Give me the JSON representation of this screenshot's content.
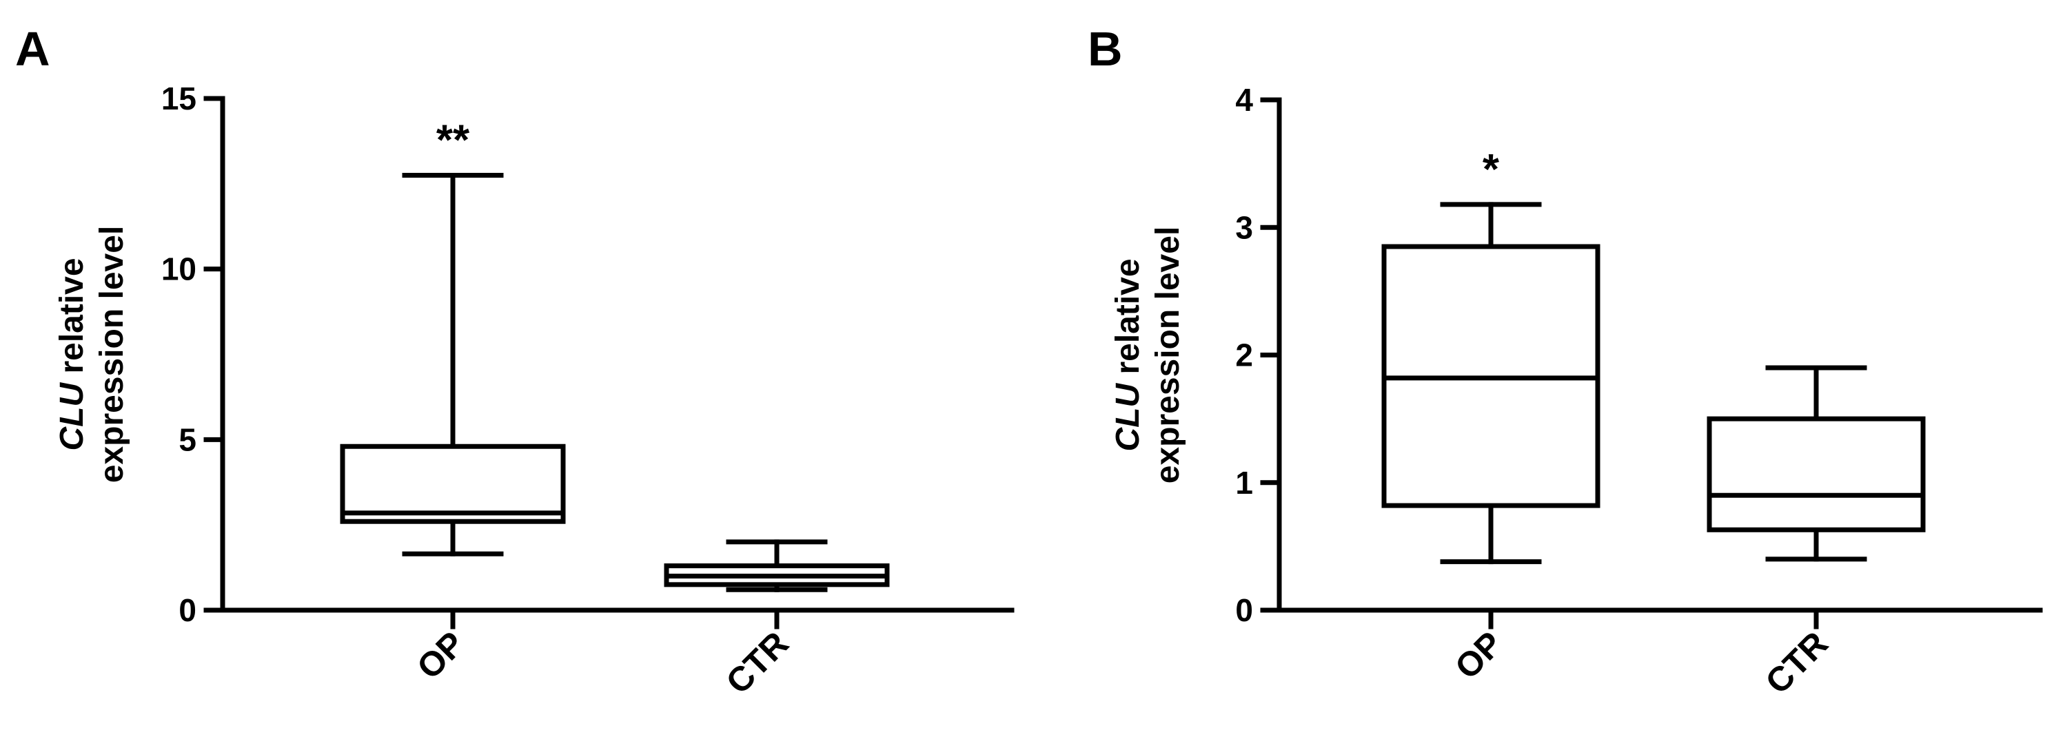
{
  "chart_data": [
    {
      "type": "box",
      "panel_label": "A",
      "ylabel_italic": "CLU",
      "ylabel_rest": " relative",
      "ylabel_line2": "expression level",
      "ylim": [
        0,
        15
      ],
      "yticks": [
        0,
        5,
        10,
        15
      ],
      "yticklabels": [
        "0",
        "5",
        "10",
        "15"
      ],
      "categories": [
        "OP",
        "CTR"
      ],
      "boxes": [
        {
          "category": "OP",
          "whisker_low": 1.65,
          "q1": 2.6,
          "median": 2.85,
          "q3": 4.8,
          "whisker_high": 12.75,
          "significance": "**"
        },
        {
          "category": "CTR",
          "whisker_low": 0.6,
          "q1": 0.75,
          "median": 1.0,
          "q3": 1.3,
          "whisker_high": 2.0,
          "significance": ""
        }
      ]
    },
    {
      "type": "box",
      "panel_label": "B",
      "ylabel_italic": "CLU",
      "ylabel_rest": " relative",
      "ylabel_line2": "expression level",
      "ylim": [
        0,
        4
      ],
      "yticks": [
        0,
        1,
        2,
        3,
        4
      ],
      "yticklabels": [
        "0",
        "1",
        "2",
        "3",
        "4"
      ],
      "categories": [
        "OP",
        "CTR"
      ],
      "boxes": [
        {
          "category": "OP",
          "whisker_low": 0.38,
          "q1": 0.82,
          "median": 1.82,
          "q3": 2.85,
          "whisker_high": 3.18,
          "significance": "*"
        },
        {
          "category": "CTR",
          "whisker_low": 0.4,
          "q1": 0.63,
          "median": 0.9,
          "q3": 1.5,
          "whisker_high": 1.9,
          "significance": ""
        }
      ]
    }
  ]
}
